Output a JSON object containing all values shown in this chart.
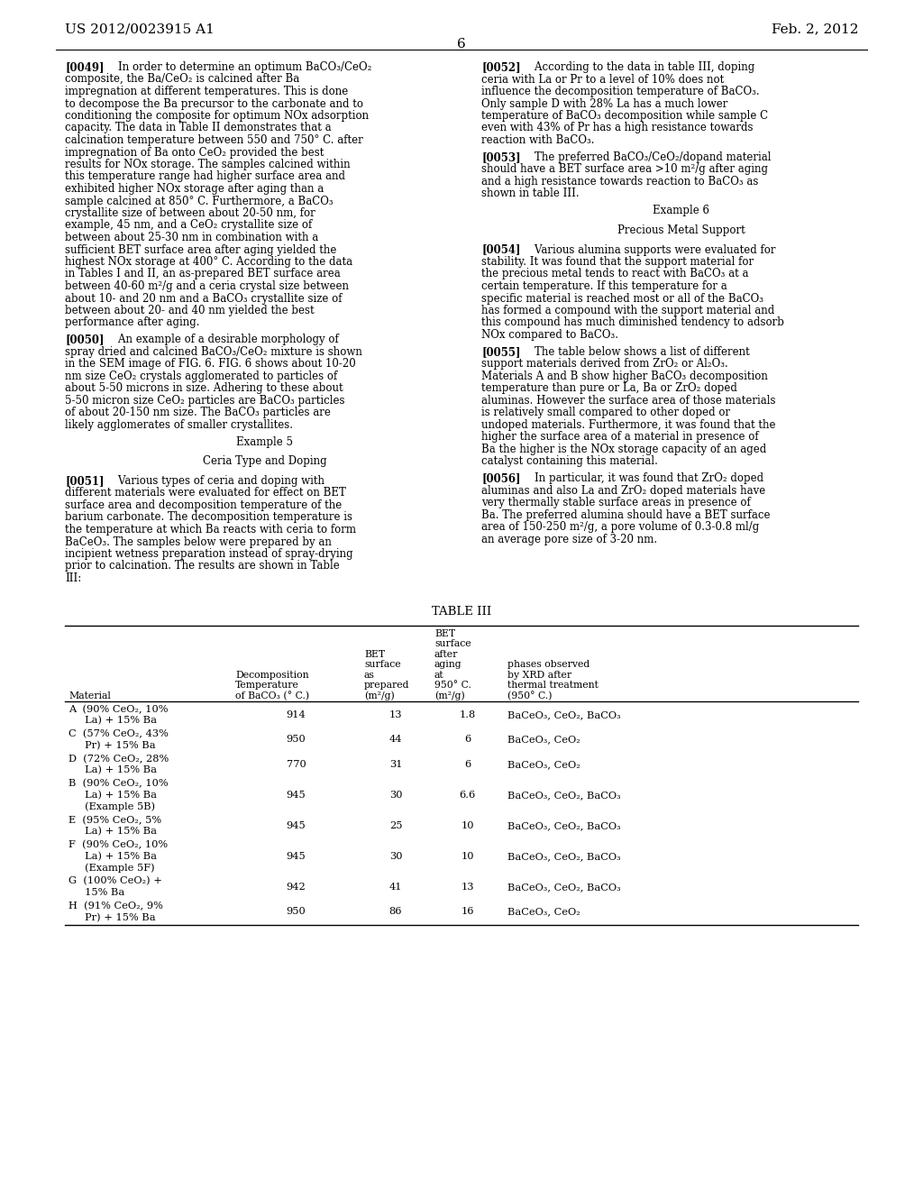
{
  "bg_color": "#ffffff",
  "header_left": "US 2012/0023915 A1",
  "header_right": "Feb. 2, 2012",
  "page_number": "6",
  "left_paras": [
    {
      "tag": "[0049]",
      "text": "In order to determine an optimum BaCO₃/CeO₂ composite, the Ba/CeO₂ is calcined after Ba impregnation at different temperatures. This is done to decompose the Ba precursor to the carbonate and to conditioning the composite for optimum NOx adsorption capacity. The data in Table II demonstrates that a calcination temperature between 550 and 750° C. after impregnation of Ba onto CeO₂ provided the best results for NOx storage. The samples calcined within this temperature range had higher surface area and exhibited higher NOx storage after aging than a sample calcined at 850° C. Furthermore, a BaCO₃ crystallite size of between about 20-50 nm, for example, 45 nm, and a CeO₂ crystallite size of between about 25-30 nm in combination with a sufficient BET surface area after aging yielded the highest NOx storage at 400° C. According to the data in Tables I and II, an as-prepared BET surface area between 40-60 m²/g and a ceria crystal size between about 10- and 20 nm and a BaCO₃ crystallite size of between about 20- and 40 nm yielded the best performance after aging."
    },
    {
      "tag": "[0050]",
      "text": "An example of a desirable morphology of spray dried and calcined BaCO₃/CeO₂ mixture is shown in the SEM image of FIG. 6. FIG. 6 shows about 10-20 nm size CeO₂ crystals agglomerated to particles of about 5-50 microns in size. Adhering to these about 5-50 micron size CeO₂ particles are BaCO₃ particles of about 20-150 nm size. The BaCO₃ particles are likely agglomerates of smaller crystallites."
    },
    {
      "tag": "Example 5",
      "text": "",
      "centered": true
    },
    {
      "tag": "Ceria Type and Doping",
      "text": "",
      "centered": true
    },
    {
      "tag": "[0051]",
      "text": "Various types of ceria and doping with different materials were evaluated for effect on BET surface area and decomposition temperature of the barium carbonate. The decomposition temperature is the temperature at which Ba reacts with ceria to form BaCeO₃. The samples below were prepared by an incipient wetness preparation instead of spray-drying prior to calcination. The results are shown in Table III:"
    }
  ],
  "right_paras": [
    {
      "tag": "[0052]",
      "text": "According to the data in table III, doping ceria with La or Pr to a level of 10% does not influence the decomposition temperature of BaCO₃. Only sample D with 28% La has a much lower temperature of BaCO₃ decomposition while sample C even with 43% of Pr has a high resistance towards reaction with BaCO₃."
    },
    {
      "tag": "[0053]",
      "text": "The preferred BaCO₃/CeO₂/dopand material should have a BET surface area >10 m²/g after aging and a high resistance towards reaction to BaCO₃ as shown in table III."
    },
    {
      "tag": "Example 6",
      "text": "",
      "centered": true
    },
    {
      "tag": "Precious Metal Support",
      "text": "",
      "centered": true
    },
    {
      "tag": "[0054]",
      "text": "Various alumina supports were evaluated for stability. It was found that the support material for the precious metal tends to react with BaCO₃ at a certain temperature. If this temperature for a specific material is reached most or all of the BaCO₃ has formed a compound with the support material and this compound has much diminished tendency to adsorb NOx compared to BaCO₃."
    },
    {
      "tag": "[0055]",
      "text": "The table below shows a list of different support materials derived from ZrO₂ or Al₂O₃. Materials A and B show higher BaCO₃ decomposition temperature than pure or La, Ba or ZrO₂ doped aluminas. However the surface area of those materials is relatively small compared to other doped or undoped materials. Furthermore, it was found that the higher the surface area of a material in presence of Ba the higher is the NOx storage capacity of an aged catalyst containing this material."
    },
    {
      "tag": "[0056]",
      "text": "In particular, it was found that ZrO₂ doped aluminas and also La and ZrO₂ doped materials have very thermally stable surface areas in presence of Ba. The preferred alumina should have a BET surface area of 150-250 m²/g, a pore volume of 0.3-0.8 ml/g an average pore size of 3-20 nm."
    }
  ],
  "table_entries": [
    {
      "mat": [
        "A  (90% CeO₂, 10%",
        "     La) + 15% Ba"
      ],
      "decomp": "914",
      "bet_p": "13",
      "bet_a": "1.8",
      "phases": "BaCeO₃, CeO₂, BaCO₃"
    },
    {
      "mat": [
        "C  (57% CeO₂, 43%",
        "     Pr) + 15% Ba"
      ],
      "decomp": "950",
      "bet_p": "44",
      "bet_a": "6",
      "phases": "BaCeO₃, CeO₂"
    },
    {
      "mat": [
        "D  (72% CeO₂, 28%",
        "     La) + 15% Ba"
      ],
      "decomp": "770",
      "bet_p": "31",
      "bet_a": "6",
      "phases": "BaCeO₃, CeO₂"
    },
    {
      "mat": [
        "B  (90% CeO₂, 10%",
        "     La) + 15% Ba",
        "     (Example 5B)"
      ],
      "decomp": "945",
      "bet_p": "30",
      "bet_a": "6.6",
      "phases": "BaCeO₃, CeO₂, BaCO₃"
    },
    {
      "mat": [
        "E  (95% CeO₂, 5%",
        "     La) + 15% Ba"
      ],
      "decomp": "945",
      "bet_p": "25",
      "bet_a": "10",
      "phases": "BaCeO₃, CeO₂, BaCO₃"
    },
    {
      "mat": [
        "F  (90% CeO₂, 10%",
        "     La) + 15% Ba",
        "     (Example 5F)"
      ],
      "decomp": "945",
      "bet_p": "30",
      "bet_a": "10",
      "phases": "BaCeO₃, CeO₂, BaCO₃"
    },
    {
      "mat": [
        "G  (100% CeO₂) +",
        "     15% Ba"
      ],
      "decomp": "942",
      "bet_p": "41",
      "bet_a": "13",
      "phases": "BaCeO₃, CeO₂, BaCO₃"
    },
    {
      "mat": [
        "H  (91% CeO₂, 9%",
        "     Pr) + 15% Ba"
      ],
      "decomp": "950",
      "bet_p": "86",
      "bet_a": "16",
      "phases": "BaCeO₃, CeO₂"
    }
  ]
}
